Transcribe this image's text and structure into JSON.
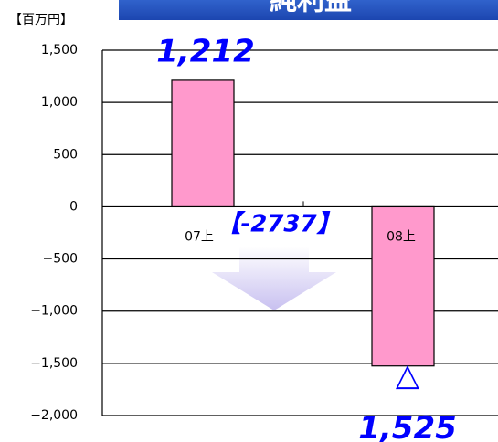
{
  "chart_data": {
    "type": "bar",
    "title": "純利益",
    "unit_label": "【百万円】",
    "categories": [
      "07上",
      "08上"
    ],
    "values": [
      1212,
      -1525
    ],
    "value_labels": [
      "1,212",
      "△1,525"
    ],
    "color": "#ff99cc",
    "annotation": "【-2737】",
    "ylim": [
      -2000,
      1500
    ],
    "yticks": [
      {
        "value": 1500,
        "label": "1,500"
      },
      {
        "value": 1000,
        "label": "1,000"
      },
      500,
      0,
      {
        "value": -500,
        "label": "−500"
      },
      {
        "value": -1000,
        "label": "−1,000"
      },
      {
        "value": -1500,
        "label": "−1,500"
      },
      {
        "value": -2000,
        "label": "−2,000"
      }
    ],
    "grid": true
  }
}
